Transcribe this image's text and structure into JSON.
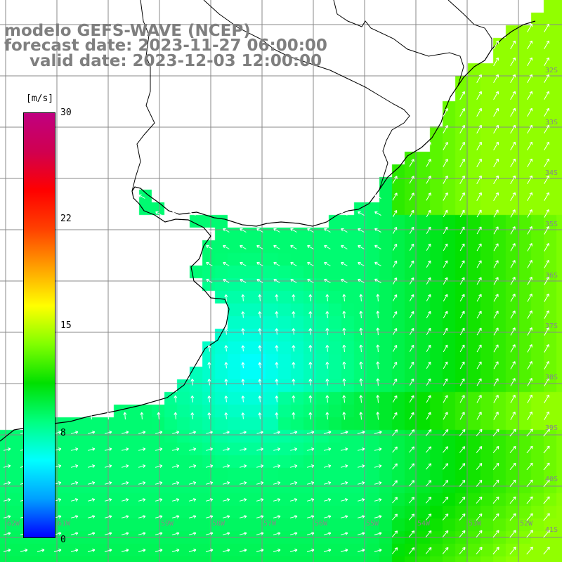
{
  "title": {
    "line1": "modelo GEFS-WAVE (NCEP)",
    "line2": "forecast date: 2023-11-27 06:00:00",
    "line3": "valid date: 2023-12-03 12:00:00"
  },
  "colorbar": {
    "unit": "[m/s]",
    "ticks": [
      "30",
      "22",
      "15",
      "8",
      "0"
    ],
    "tick_values": [
      30,
      22,
      15,
      8,
      0
    ],
    "range": [
      0,
      30
    ],
    "colors": [
      "#0000ff",
      "#00a0ff",
      "#00ffff",
      "#00ff80",
      "#00e000",
      "#80ff00",
      "#ffff00",
      "#ffa000",
      "#ff4000",
      "#ff0000",
      "#d00050",
      "#c00080"
    ]
  },
  "map": {
    "variable": "wind speed",
    "land_color": "#ffffff",
    "coastline_color": "#000000",
    "grid_color": "#888888",
    "arrow_color": "#ffffff",
    "lat_labels": [
      "32S",
      "33S",
      "34S",
      "35S",
      "36S",
      "37S",
      "38S",
      "39S",
      "40S",
      "41S"
    ],
    "lon_labels": [
      "62W",
      "61W",
      "60W",
      "59W",
      "58W",
      "57W",
      "56W",
      "55W",
      "54W",
      "53W",
      "52W"
    ]
  }
}
